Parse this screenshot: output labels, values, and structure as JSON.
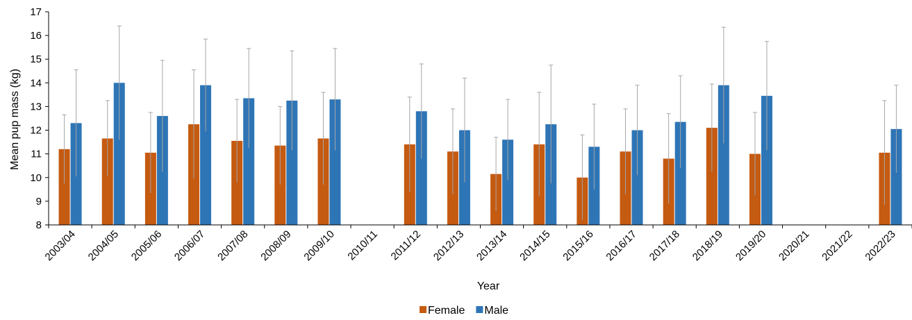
{
  "chart_data": {
    "type": "bar",
    "title": "",
    "xlabel": "Year",
    "ylabel": "Mean pup mass (kg)",
    "ylim": [
      8,
      17
    ],
    "yticks": [
      8,
      9,
      10,
      11,
      12,
      13,
      14,
      15,
      16,
      17
    ],
    "grid": false,
    "legend_position": "bottom",
    "categories": [
      "2003/04",
      "2004/05",
      "2005/06",
      "2006/07",
      "2007/08",
      "2008/09",
      "2009/10",
      "2010/11",
      "2011/12",
      "2012/13",
      "2013/14",
      "2014/15",
      "2015/16",
      "2016/17",
      "2017/18",
      "2018/19",
      "2019/20",
      "2020/21",
      "2021/22",
      "2022/23"
    ],
    "series": [
      {
        "name": "Female",
        "color": "#C55A11",
        "values": [
          11.2,
          11.65,
          11.05,
          12.25,
          11.55,
          11.35,
          11.65,
          null,
          11.4,
          11.1,
          10.15,
          11.4,
          10.0,
          11.1,
          10.8,
          12.1,
          11.0,
          null,
          null,
          11.05
        ],
        "error": [
          1.45,
          1.6,
          1.7,
          2.3,
          1.75,
          1.65,
          1.95,
          null,
          2.0,
          1.8,
          1.55,
          2.2,
          1.8,
          1.8,
          1.9,
          1.85,
          1.75,
          null,
          null,
          2.2
        ]
      },
      {
        "name": "Male",
        "color": "#2E75B6",
        "values": [
          12.3,
          14.0,
          12.6,
          13.9,
          13.35,
          13.25,
          13.3,
          null,
          12.8,
          12.0,
          11.6,
          12.25,
          11.3,
          12.0,
          12.35,
          13.9,
          13.45,
          null,
          null,
          12.05
        ],
        "error": [
          2.25,
          2.4,
          2.35,
          1.95,
          2.1,
          2.1,
          2.15,
          null,
          2.0,
          2.2,
          1.7,
          2.5,
          1.8,
          1.9,
          1.95,
          2.45,
          2.3,
          null,
          null,
          1.85
        ]
      }
    ]
  }
}
